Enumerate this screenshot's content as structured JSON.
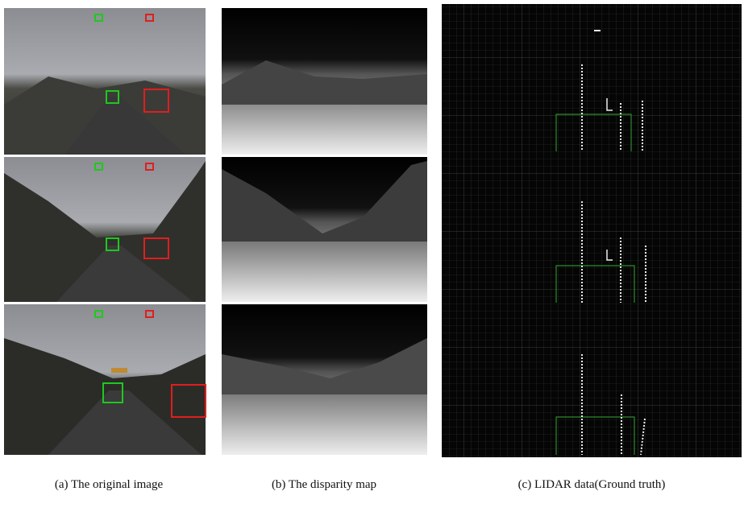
{
  "figure": {
    "panels": [
      {
        "caption": "(a) The original image"
      },
      {
        "caption": "(b) The disparity map"
      },
      {
        "caption": "(c) LIDAR data(Ground truth)"
      }
    ]
  }
}
